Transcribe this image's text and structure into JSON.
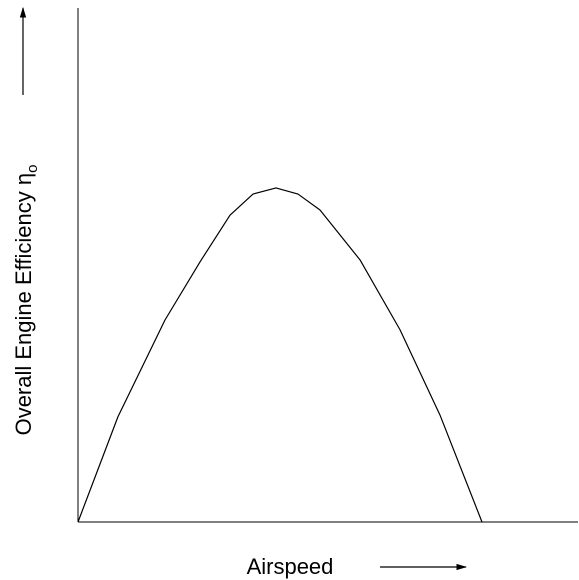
{
  "chart_data": {
    "type": "line",
    "x_label": "Airspeed",
    "y_label": "Overall Engine Efficiency  η",
    "y_label_subscript": "o",
    "xlim": [
      0,
      100
    ],
    "ylim": [
      0,
      100
    ],
    "x": [
      0,
      8,
      17.4,
      24.4,
      30.4,
      35,
      39.6,
      44,
      48.4,
      56.4,
      64.4,
      72.4,
      80.8
    ],
    "series": [
      {
        "color": "#000000",
        "values": [
          0,
          20.5,
          39.3,
          50.6,
          59.7,
          63.8,
          65,
          63.8,
          60.7,
          51,
          37.4,
          20.8,
          0
        ]
      }
    ]
  }
}
